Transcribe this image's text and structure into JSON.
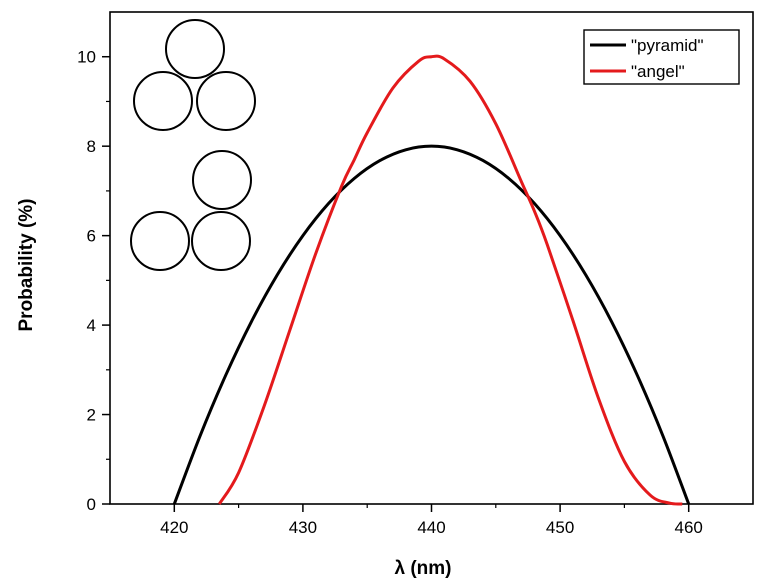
{
  "chart_data": {
    "type": "line",
    "xlabel": "λ (nm)",
    "ylabel": "Probability (%)",
    "xlim": [
      415,
      465
    ],
    "ylim": [
      0,
      11
    ],
    "xticks": [
      420,
      430,
      440,
      450,
      460
    ],
    "yticks": [
      0,
      2,
      4,
      6,
      8,
      10
    ],
    "grid": false,
    "legend_position": "top-right",
    "series": [
      {
        "name": "\"pyramid\"",
        "color": "#000000",
        "x": [
          420,
          422,
          424,
          426,
          428,
          430,
          432,
          434,
          436,
          438,
          440,
          442,
          444,
          446,
          448,
          450,
          452,
          454,
          456,
          458,
          460
        ],
        "y": [
          0,
          1.52,
          2.88,
          4.08,
          5.12,
          6.0,
          6.72,
          7.28,
          7.68,
          7.92,
          8.0,
          7.92,
          7.68,
          7.28,
          6.72,
          6.0,
          5.12,
          4.08,
          2.88,
          1.52,
          0
        ]
      },
      {
        "name": "\"angel\"",
        "color": "#e41a1c",
        "x": [
          423.5,
          425,
          427,
          429,
          431,
          433,
          434,
          435,
          437,
          439,
          440,
          441,
          443,
          445,
          447,
          448,
          449,
          451,
          453,
          455,
          457,
          458.5,
          459.5
        ],
        "y": [
          0,
          0.7,
          2.2,
          3.9,
          5.6,
          7.1,
          7.7,
          8.3,
          9.3,
          9.9,
          10.0,
          9.95,
          9.45,
          8.5,
          7.2,
          6.55,
          5.8,
          4.1,
          2.35,
          0.95,
          0.2,
          0.02,
          0
        ]
      }
    ],
    "inset": {
      "type": "sphere-cluster-sketches",
      "clusters": [
        "pyramid",
        "angel"
      ]
    }
  }
}
